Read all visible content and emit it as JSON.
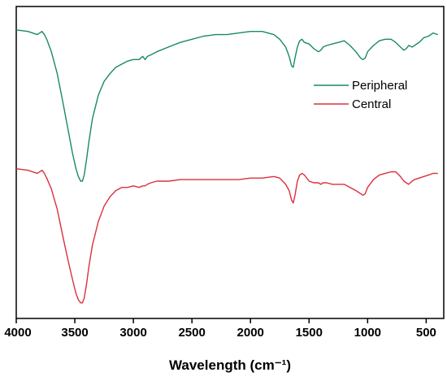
{
  "chart_data": {
    "type": "line",
    "title": "",
    "xlabel": "Wavelength (cm⁻¹)",
    "ylabel": "",
    "xlim": [
      4000,
      350
    ],
    "ylim": [
      0,
      2.0
    ],
    "x_reversed": true,
    "y_ticks_shown": false,
    "grid": false,
    "legend_position": "right-center",
    "x_ticks": [
      {
        "value": 4000,
        "label": "4000"
      },
      {
        "value": 3500,
        "label": "3500"
      },
      {
        "value": 3000,
        "label": "3000"
      },
      {
        "value": 2500,
        "label": "2500"
      },
      {
        "value": 2000,
        "label": "2000"
      },
      {
        "value": 1500,
        "label": "1500"
      },
      {
        "value": 1000,
        "label": "1000"
      },
      {
        "value": 500,
        "label": "500"
      }
    ],
    "series": [
      {
        "name": "Peripheral",
        "color": "#1a8a5e",
        "x": [
          4000,
          3900,
          3820,
          3780,
          3760,
          3740,
          3700,
          3650,
          3600,
          3560,
          3520,
          3490,
          3470,
          3450,
          3435,
          3420,
          3400,
          3380,
          3350,
          3300,
          3250,
          3200,
          3150,
          3100,
          3050,
          3000,
          2950,
          2920,
          2900,
          2880,
          2850,
          2800,
          2700,
          2600,
          2500,
          2400,
          2300,
          2200,
          2100,
          2000,
          1900,
          1800,
          1750,
          1700,
          1670,
          1650,
          1635,
          1620,
          1600,
          1580,
          1560,
          1540,
          1500,
          1460,
          1420,
          1400,
          1380,
          1350,
          1300,
          1250,
          1200,
          1150,
          1100,
          1080,
          1060,
          1040,
          1020,
          1000,
          950,
          900,
          850,
          800,
          760,
          720,
          690,
          670,
          650,
          620,
          600,
          560,
          520,
          480,
          440,
          400
        ],
        "y": [
          1.85,
          1.84,
          1.82,
          1.84,
          1.82,
          1.79,
          1.71,
          1.57,
          1.38,
          1.22,
          1.06,
          0.96,
          0.91,
          0.88,
          0.88,
          0.92,
          1.02,
          1.13,
          1.28,
          1.43,
          1.52,
          1.57,
          1.61,
          1.63,
          1.65,
          1.66,
          1.66,
          1.68,
          1.66,
          1.68,
          1.69,
          1.71,
          1.74,
          1.77,
          1.79,
          1.81,
          1.82,
          1.82,
          1.83,
          1.84,
          1.84,
          1.82,
          1.79,
          1.74,
          1.68,
          1.62,
          1.61,
          1.67,
          1.74,
          1.78,
          1.79,
          1.77,
          1.76,
          1.73,
          1.71,
          1.72,
          1.74,
          1.75,
          1.76,
          1.77,
          1.78,
          1.75,
          1.71,
          1.69,
          1.67,
          1.66,
          1.67,
          1.71,
          1.75,
          1.78,
          1.79,
          1.79,
          1.77,
          1.74,
          1.72,
          1.73,
          1.75,
          1.74,
          1.75,
          1.77,
          1.8,
          1.81,
          1.83,
          1.82
        ]
      },
      {
        "name": "Central",
        "color": "#d9303f",
        "x": [
          4000,
          3900,
          3820,
          3780,
          3760,
          3740,
          3700,
          3650,
          3600,
          3560,
          3520,
          3490,
          3470,
          3450,
          3435,
          3420,
          3400,
          3380,
          3350,
          3300,
          3250,
          3200,
          3150,
          3100,
          3050,
          3000,
          2950,
          2920,
          2900,
          2880,
          2850,
          2800,
          2700,
          2600,
          2500,
          2400,
          2300,
          2200,
          2100,
          2000,
          1900,
          1800,
          1750,
          1700,
          1670,
          1650,
          1635,
          1620,
          1600,
          1580,
          1560,
          1540,
          1500,
          1460,
          1420,
          1400,
          1380,
          1350,
          1300,
          1250,
          1200,
          1150,
          1100,
          1080,
          1060,
          1040,
          1020,
          1000,
          950,
          900,
          850,
          800,
          760,
          720,
          690,
          670,
          650,
          620,
          600,
          560,
          520,
          480,
          440,
          400
        ],
        "y": [
          0.96,
          0.95,
          0.93,
          0.95,
          0.93,
          0.9,
          0.83,
          0.7,
          0.52,
          0.38,
          0.25,
          0.16,
          0.12,
          0.1,
          0.1,
          0.13,
          0.22,
          0.33,
          0.47,
          0.62,
          0.72,
          0.78,
          0.82,
          0.84,
          0.84,
          0.85,
          0.84,
          0.85,
          0.85,
          0.86,
          0.87,
          0.88,
          0.88,
          0.89,
          0.89,
          0.89,
          0.89,
          0.89,
          0.89,
          0.9,
          0.9,
          0.91,
          0.9,
          0.86,
          0.82,
          0.76,
          0.74,
          0.79,
          0.88,
          0.92,
          0.93,
          0.92,
          0.88,
          0.87,
          0.87,
          0.86,
          0.87,
          0.87,
          0.86,
          0.86,
          0.86,
          0.84,
          0.82,
          0.81,
          0.8,
          0.79,
          0.8,
          0.84,
          0.89,
          0.92,
          0.93,
          0.94,
          0.94,
          0.91,
          0.88,
          0.87,
          0.86,
          0.88,
          0.89,
          0.9,
          0.91,
          0.92,
          0.93,
          0.93
        ]
      }
    ]
  }
}
